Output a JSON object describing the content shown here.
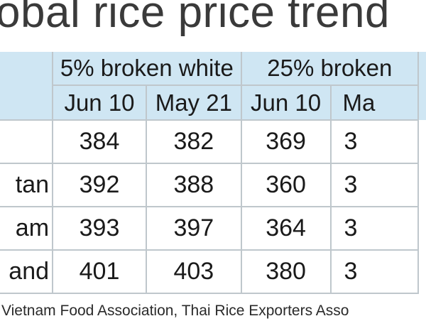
{
  "title": "obal rice price trend",
  "chart_data": {
    "type": "table",
    "column_groups": [
      {
        "label": "5% broken white",
        "columns": [
          "Jun 10",
          "May 21"
        ]
      },
      {
        "label": "25% broken",
        "columns": [
          "Jun 10",
          "Ma"
        ]
      }
    ],
    "rows": [
      {
        "label": "",
        "values": [
          "384",
          "382",
          "369",
          "3"
        ]
      },
      {
        "label": "tan",
        "values": [
          "392",
          "388",
          "360",
          "3"
        ]
      },
      {
        "label": "am",
        "values": [
          "393",
          "397",
          "364",
          "3"
        ]
      },
      {
        "label": "and",
        "values": [
          "401",
          "403",
          "380",
          "3"
        ]
      }
    ]
  },
  "source": "Vietnam Food Association, Thai Rice Exporters Asso",
  "colors": {
    "header_bg": "#cfe6f3",
    "grid": "#bfc7cc",
    "text": "#1a1a1a"
  }
}
